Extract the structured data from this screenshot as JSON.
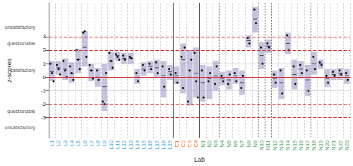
{
  "chart_data": {
    "type": "range_points",
    "x_label": "Lab",
    "y_label": "z-scores",
    "ylim": [
      -4.5,
      5.5
    ],
    "yticks": [
      -3,
      -2,
      -1,
      0,
      1,
      2,
      3
    ],
    "grid": true,
    "reference_lines": [
      {
        "y": -3,
        "line_style": "dashed",
        "color": "#d62728"
      },
      {
        "y": -2,
        "line_style": "dashed",
        "color": "#d62728"
      },
      {
        "y": -1,
        "line_style": "dotted",
        "color": "#9a9a9a"
      },
      {
        "y": 0,
        "line_style": "solid",
        "color": "#d62728"
      },
      {
        "y": 1,
        "line_style": "dotted",
        "color": "#9a9a9a"
      },
      {
        "y": 2,
        "line_style": "dashed",
        "color": "#d62728"
      },
      {
        "y": 3,
        "line_style": "dashed",
        "color": "#d62728"
      }
    ],
    "annotations": [
      {
        "text": "unsatisfactory",
        "y": 3.7
      },
      {
        "text": "questionable",
        "y": 2.5
      },
      {
        "text": "satisfactory",
        "y": 0.5
      },
      {
        "text": "questionable",
        "y": -2.5
      },
      {
        "text": "unsatisfactory",
        "y": -3.7
      }
    ],
    "dividers": [
      "N4",
      "N10",
      "N11",
      "N12",
      "N18"
    ],
    "series": [
      {
        "color": "#2b9fd8",
        "labs": [
          {
            "label": "L1",
            "low": -0.3,
            "high": 1.2,
            "center": 0.4,
            "points": [
              1.0,
              0.3,
              -0.3
            ]
          },
          {
            "label": "L2",
            "low": 0.2,
            "high": 1.2,
            "center": 0.7,
            "points": [
              0.9,
              0.6,
              0.2
            ]
          },
          {
            "label": "L3",
            "low": -0.2,
            "high": 1.4,
            "center": 0.6,
            "points": [
              1.2,
              0.5,
              0.0
            ]
          },
          {
            "label": "L4",
            "low": -0.4,
            "high": 1.1,
            "center": 0.3,
            "points": [
              0.8,
              0.3,
              -0.2
            ]
          },
          {
            "label": "L5",
            "low": 0.3,
            "high": 2.1,
            "center": 1.3,
            "points": [
              2.0,
              1.3,
              0.6
            ]
          },
          {
            "label": "L6",
            "low": 0.8,
            "high": 3.4,
            "center": 2.2,
            "points": [
              3.3,
              3.4,
              1.5
            ]
          },
          {
            "label": "L7",
            "low": -0.3,
            "high": 1.0,
            "center": 0.5,
            "points": [
              0.9,
              0.5,
              -0.1
            ]
          },
          {
            "label": "L8",
            "low": -0.7,
            "high": 0.7,
            "center": 0.0,
            "points": [
              0.5,
              -0.2
            ]
          },
          {
            "label": "L9",
            "low": -2.5,
            "high": 1.0,
            "center": -0.7,
            "points": [
              -1.8,
              -2.0,
              0.3
            ]
          },
          {
            "label": "L10",
            "low": 0.5,
            "high": 1.9,
            "center": 1.2,
            "points": [
              1.8,
              1.2,
              0.7
            ]
          },
          {
            "label": "L11",
            "low": 1.2,
            "high": 1.9,
            "center": 1.6,
            "points": [
              1.7,
              1.5,
              1.3
            ]
          },
          {
            "label": "L12",
            "low": 1.0,
            "high": 1.8,
            "center": 1.4,
            "points": [
              1.6,
              1.3
            ]
          },
          {
            "label": "L13",
            "low": 1.0,
            "high": 1.8,
            "center": 1.4,
            "points": [
              1.5,
              1.4
            ]
          },
          {
            "label": "L14",
            "low": -0.5,
            "high": 0.6,
            "center": 0.0,
            "points": [
              0.3,
              -0.3
            ]
          },
          {
            "label": "L15",
            "low": 0.1,
            "high": 1.1,
            "center": 0.6,
            "points": [
              0.9,
              0.5
            ]
          },
          {
            "label": "L16",
            "low": 0.3,
            "high": 1.2,
            "center": 0.8,
            "points": [
              1.0,
              0.6
            ]
          },
          {
            "label": "L17",
            "low": 0.0,
            "high": 1.3,
            "center": 0.7,
            "points": [
              1.1,
              0.3
            ]
          },
          {
            "label": "L18",
            "low": -1.5,
            "high": 1.2,
            "center": 0.1,
            "points": [
              0.8,
              -0.7
            ]
          },
          {
            "label": "L19",
            "low": -0.2,
            "high": 0.9,
            "center": 0.4,
            "points": [
              0.6,
              0.2
            ]
          }
        ]
      },
      {
        "color": "#e8731a",
        "labs": [
          {
            "label": "C1",
            "low": -0.5,
            "high": 0.8,
            "center": 0.1,
            "points": [
              0.3,
              -0.4
            ]
          },
          {
            "label": "C2",
            "low": -1.2,
            "high": 2.5,
            "center": 1.3,
            "points": [
              1.5,
              -0.8,
              2.2
            ]
          },
          {
            "label": "C3",
            "low": -2.1,
            "high": 2.0,
            "center": 0.0,
            "points": [
              -1.8,
              0.5,
              1.3
            ]
          },
          {
            "label": "C4",
            "low": -1.5,
            "high": 2.2,
            "center": 0.3,
            "points": [
              1.8,
              -0.3,
              -1.5
            ]
          }
        ]
      },
      {
        "color": "#3a9a5a",
        "labs": [
          {
            "label": "N1",
            "low": -1.8,
            "high": 0.9,
            "center": -0.4,
            "points": [
              0.5,
              -1.5
            ]
          },
          {
            "label": "N2",
            "low": -1.6,
            "high": 0.8,
            "center": -0.1,
            "points": [
              -0.3,
              0.3
            ]
          },
          {
            "label": "N3",
            "low": -1.0,
            "high": 1.2,
            "center": 0.1,
            "points": [
              -0.5,
              0.8
            ]
          },
          {
            "label": "N4",
            "low": -0.6,
            "high": 0.4,
            "center": -0.1,
            "points": [
              0.1,
              -0.3
            ]
          },
          {
            "label": "N5",
            "low": -0.9,
            "high": 0.5,
            "center": -0.2,
            "points": [
              -0.5,
              0.2
            ]
          },
          {
            "label": "N6",
            "low": -0.5,
            "high": 0.7,
            "center": 0.1,
            "points": [
              0.3,
              -0.3
            ]
          },
          {
            "label": "N7",
            "low": -1.3,
            "high": 0.5,
            "center": -0.4,
            "points": [
              -0.8,
              0.1
            ]
          },
          {
            "label": "N8",
            "low": 2.2,
            "high": 3.1,
            "center": 2.7,
            "points": [
              2.9,
              2.5
            ]
          },
          {
            "label": "N9",
            "low": 3.3,
            "high": 5.2,
            "center": 4.3,
            "points": [
              5.0,
              4.0
            ]
          },
          {
            "label": "N10",
            "low": 0.6,
            "high": 2.6,
            "center": 1.6,
            "points": [
              2.2,
              1.0
            ]
          },
          {
            "label": "N11",
            "low": 1.8,
            "high": 2.8,
            "center": 2.3,
            "points": [
              2.5,
              2.2
            ]
          },
          {
            "label": "N12",
            "low": -0.8,
            "high": 0.5,
            "center": -0.1,
            "points": [
              0.2,
              -0.4
            ]
          },
          {
            "label": "N13",
            "low": -1.6,
            "high": 0.7,
            "center": -0.4,
            "points": [
              0.5,
              -1.2
            ]
          },
          {
            "label": "N14",
            "low": 1.7,
            "high": 3.3,
            "center": 2.5,
            "points": [
              3.1,
              2.0
            ]
          },
          {
            "label": "N15",
            "low": -0.9,
            "high": 1.3,
            "center": 0.2,
            "points": [
              0.8,
              -0.5
            ]
          },
          {
            "label": "N16",
            "low": -0.1,
            "high": 1.2,
            "center": 0.6,
            "points": [
              0.9,
              0.3
            ]
          },
          {
            "label": "N17",
            "low": -1.4,
            "high": 0.9,
            "center": -0.2,
            "points": [
              0.5,
              -1.0
            ]
          },
          {
            "label": "N18",
            "low": 0.2,
            "high": 1.9,
            "center": 1.0,
            "points": [
              1.5,
              0.6
            ]
          },
          {
            "label": "N19",
            "low": 0.6,
            "high": 1.3,
            "center": 1.0,
            "points": [
              1.1,
              0.9
            ]
          },
          {
            "label": "N20",
            "low": -0.7,
            "high": 0.6,
            "center": -0.1,
            "points": [
              0.1,
              -0.4
            ]
          },
          {
            "label": "N21",
            "low": -0.2,
            "high": 0.6,
            "center": 0.2,
            "points": [
              0.4,
              0.1
            ]
          },
          {
            "label": "N22",
            "low": -0.2,
            "high": 0.7,
            "center": 0.3,
            "points": [
              0.5,
              0.2
            ]
          },
          {
            "label": "N23",
            "low": -0.5,
            "high": 0.6,
            "center": 0.1,
            "points": [
              0.3,
              -0.2
            ]
          }
        ]
      }
    ]
  }
}
